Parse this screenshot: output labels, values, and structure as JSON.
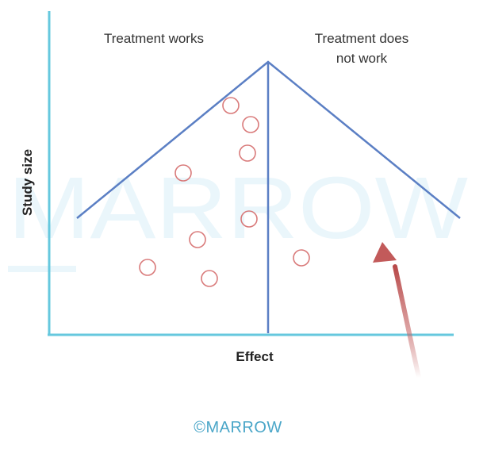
{
  "diagram": {
    "labels": {
      "left_region": "Treatment works",
      "right_region_line1": "Treatment does",
      "right_region_line2": "not work",
      "y_axis": "Study size",
      "x_axis": "Effect"
    },
    "watermark": "MARROW",
    "footer": "©MARROW",
    "colors": {
      "axis": "#66c8de",
      "funnel": "#5b7fc4",
      "points": "#d97a7a",
      "arrow": "#b84a4a",
      "watermark": "#eaf6fb",
      "footer": "#4aa6c8"
    }
  }
}
